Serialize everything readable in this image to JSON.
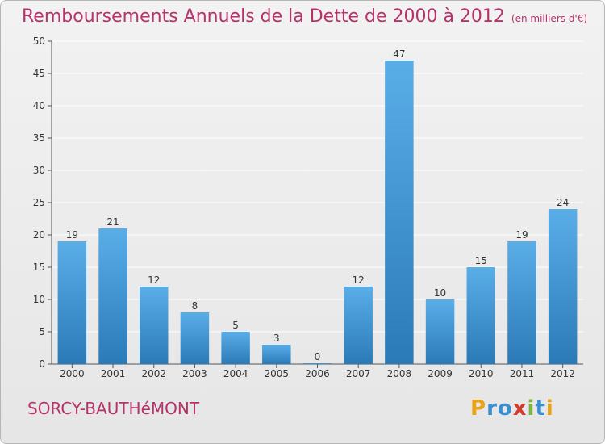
{
  "title": "Remboursements Annuels de la Dette de 2000 à 2012",
  "unit_note": "(en milliers d'€)",
  "commune": "SORCY-BAUTHéMONT",
  "logo": {
    "letters": [
      "P",
      "r",
      "o",
      "x",
      "i",
      "t",
      "i"
    ],
    "colors": [
      "#e8a317",
      "#3a8fd0",
      "#3a8fd0",
      "#d63b2f",
      "#7cb342",
      "#3a8fd0",
      "#e8a317"
    ]
  },
  "colors": {
    "bar_light": "#5aaee8",
    "bar_dark": "#2a7ab8",
    "title": "#b5326a",
    "grid": "#ffffff",
    "axis": "#555555"
  },
  "chart_data": {
    "type": "bar",
    "categories": [
      "2000",
      "2001",
      "2002",
      "2003",
      "2004",
      "2005",
      "2006",
      "2007",
      "2008",
      "2009",
      "2010",
      "2011",
      "2012"
    ],
    "values": [
      19,
      21,
      12,
      8,
      5,
      3,
      0,
      12,
      47,
      10,
      15,
      19,
      24
    ],
    "ylim": [
      0,
      50
    ],
    "yticks": [
      0,
      5,
      10,
      15,
      20,
      25,
      30,
      35,
      40,
      45,
      50
    ],
    "grid": true
  }
}
